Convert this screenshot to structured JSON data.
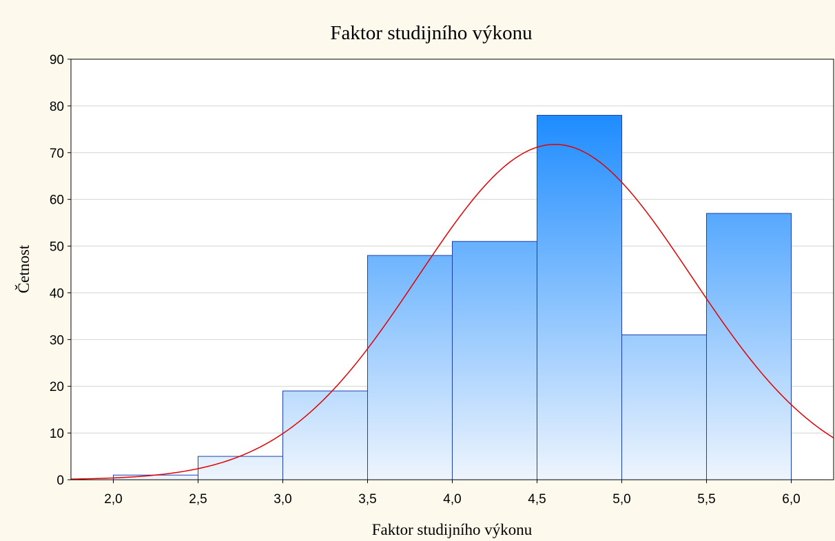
{
  "chart_data": {
    "type": "histogram",
    "title": "Faktor studijního výkonu",
    "x_label": "Faktor studijního výkonu",
    "y_label": "Četnost",
    "bins": [
      2.0,
      2.5,
      3.0,
      3.5,
      4.0,
      4.5,
      5.0,
      5.5,
      6.0
    ],
    "values": [
      1,
      5,
      19,
      48,
      51,
      78,
      31,
      57
    ],
    "xlim": [
      1.75,
      6.25
    ],
    "xticks": [
      {
        "value": 2.0,
        "label": "2,0"
      },
      {
        "value": 2.5,
        "label": "2,5"
      },
      {
        "value": 3.0,
        "label": "3,0"
      },
      {
        "value": 3.5,
        "label": "3,5"
      },
      {
        "value": 4.0,
        "label": "4,0"
      },
      {
        "value": 4.5,
        "label": "4,5"
      },
      {
        "value": 5.0,
        "label": "5,0"
      },
      {
        "value": 5.5,
        "label": "5,5"
      },
      {
        "value": 6.0,
        "label": "6,0"
      }
    ],
    "ylim": [
      0,
      90
    ],
    "yticks": [
      0,
      10,
      20,
      30,
      40,
      50,
      60,
      70,
      80,
      90
    ],
    "grid": true,
    "color": "#1e8cff",
    "edge_color": "#1a3fb5",
    "fit_color": "#e00000"
  }
}
